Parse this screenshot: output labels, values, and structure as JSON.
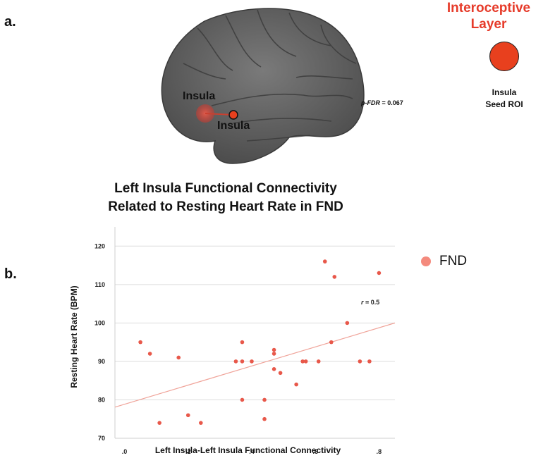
{
  "panels": {
    "a": "a.",
    "b": "b."
  },
  "brain": {
    "roi_label_1": "Insula",
    "roi_label_2": "Insula",
    "p_fdr_label": "p-FDR",
    "p_fdr_value": "= 0.067"
  },
  "legend_top": {
    "title_line1": "Interoceptive",
    "title_line2": "Layer",
    "seed_line1": "Insula",
    "seed_line2": "Seed ROI",
    "color": "#e8401e",
    "title_color": "#e63b2a"
  },
  "chart_title": {
    "line1": "Left Insula Functional Connectivity",
    "line2": "Related to Resting Heart Rate in FND"
  },
  "legend_series": {
    "name": "FND",
    "color": "#f48a7d"
  },
  "chart_data": {
    "type": "scatter",
    "xlabel": "Left Insula-Left Insula Functional Connectivity",
    "ylabel": "Resting Heart Rate (BPM)",
    "xlim": [
      -0.03,
      0.85
    ],
    "ylim": [
      70,
      125
    ],
    "x_ticks": [
      0,
      0.2,
      0.4,
      0.6,
      0.8
    ],
    "x_tick_labels": [
      ".0",
      ".2",
      ".4",
      ".6",
      ".8"
    ],
    "y_ticks": [
      70,
      80,
      90,
      100,
      110,
      120
    ],
    "y_tick_labels": [
      "70",
      "80",
      "90",
      "100",
      "110",
      "120"
    ],
    "annotation": {
      "label": "r",
      "value": "= 0.5"
    },
    "fit_line": {
      "x": [
        -0.03,
        0.85
      ],
      "y": [
        78.1,
        100.0
      ]
    },
    "series": [
      {
        "name": "FND",
        "color": "#e8584a",
        "points": [
          {
            "x": 0.05,
            "y": 95
          },
          {
            "x": 0.08,
            "y": 92
          },
          {
            "x": 0.11,
            "y": 74
          },
          {
            "x": 0.17,
            "y": 91
          },
          {
            "x": 0.2,
            "y": 76
          },
          {
            "x": 0.24,
            "y": 74
          },
          {
            "x": 0.35,
            "y": 90
          },
          {
            "x": 0.37,
            "y": 95
          },
          {
            "x": 0.37,
            "y": 90
          },
          {
            "x": 0.37,
            "y": 80
          },
          {
            "x": 0.4,
            "y": 90
          },
          {
            "x": 0.44,
            "y": 80
          },
          {
            "x": 0.44,
            "y": 75
          },
          {
            "x": 0.47,
            "y": 93
          },
          {
            "x": 0.47,
            "y": 92
          },
          {
            "x": 0.47,
            "y": 88
          },
          {
            "x": 0.49,
            "y": 87
          },
          {
            "x": 0.54,
            "y": 84
          },
          {
            "x": 0.56,
            "y": 90
          },
          {
            "x": 0.57,
            "y": 90
          },
          {
            "x": 0.61,
            "y": 90
          },
          {
            "x": 0.63,
            "y": 116
          },
          {
            "x": 0.65,
            "y": 95
          },
          {
            "x": 0.66,
            "y": 112
          },
          {
            "x": 0.7,
            "y": 100
          },
          {
            "x": 0.74,
            "y": 90
          },
          {
            "x": 0.77,
            "y": 90
          },
          {
            "x": 0.8,
            "y": 113
          }
        ]
      }
    ]
  }
}
